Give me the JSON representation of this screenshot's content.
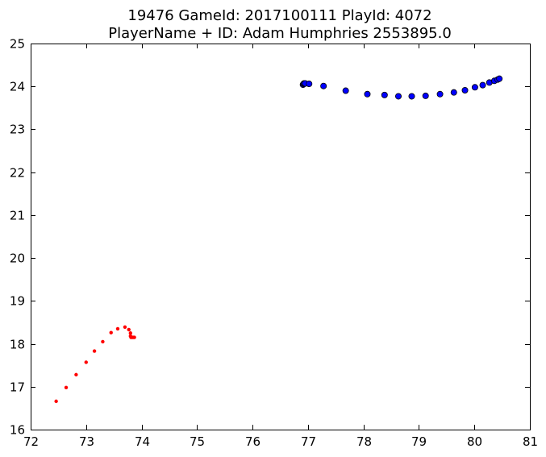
{
  "chart_data": {
    "type": "scatter",
    "title": "19476 GameId: 2017100111 PlayId: 4072",
    "subtitle": "PlayerName + ID: Adam Humphries 2553895.0",
    "xlabel": "",
    "ylabel": "",
    "xlim": [
      72,
      81
    ],
    "ylim": [
      16,
      25
    ],
    "x_ticks": [
      "72",
      "73",
      "74",
      "75",
      "76",
      "77",
      "78",
      "79",
      "80",
      "81"
    ],
    "y_ticks": [
      "16",
      "17",
      "18",
      "19",
      "20",
      "21",
      "22",
      "23",
      "24",
      "25"
    ],
    "grid": false,
    "legend": false,
    "series": [
      {
        "color": "#0000ff",
        "marker": "circle-large",
        "points": [
          [
            76.91,
            24.04
          ],
          [
            76.92,
            24.06
          ],
          [
            76.93,
            24.07
          ],
          [
            76.95,
            24.07
          ],
          [
            77.02,
            24.06
          ],
          [
            77.28,
            24.01
          ],
          [
            77.68,
            23.9
          ],
          [
            78.07,
            23.82
          ],
          [
            78.38,
            23.8
          ],
          [
            78.63,
            23.77
          ],
          [
            78.87,
            23.77
          ],
          [
            79.12,
            23.78
          ],
          [
            79.38,
            23.82
          ],
          [
            79.63,
            23.86
          ],
          [
            79.83,
            23.91
          ],
          [
            80.01,
            23.98
          ],
          [
            80.15,
            24.03
          ],
          [
            80.27,
            24.09
          ],
          [
            80.36,
            24.13
          ],
          [
            80.42,
            24.16
          ],
          [
            80.45,
            24.18
          ]
        ]
      },
      {
        "color": "#ff0000",
        "marker": "circle-small",
        "points": [
          [
            72.46,
            16.66
          ],
          [
            72.64,
            16.98
          ],
          [
            72.82,
            17.28
          ],
          [
            73.0,
            17.57
          ],
          [
            73.15,
            17.83
          ],
          [
            73.3,
            18.05
          ],
          [
            73.45,
            18.26
          ],
          [
            73.57,
            18.35
          ],
          [
            73.7,
            18.39
          ],
          [
            73.77,
            18.33
          ],
          [
            73.8,
            18.25
          ],
          [
            73.8,
            18.18
          ],
          [
            73.81,
            18.15
          ],
          [
            73.83,
            18.15
          ],
          [
            73.85,
            18.15
          ],
          [
            73.87,
            18.15
          ]
        ]
      }
    ]
  }
}
